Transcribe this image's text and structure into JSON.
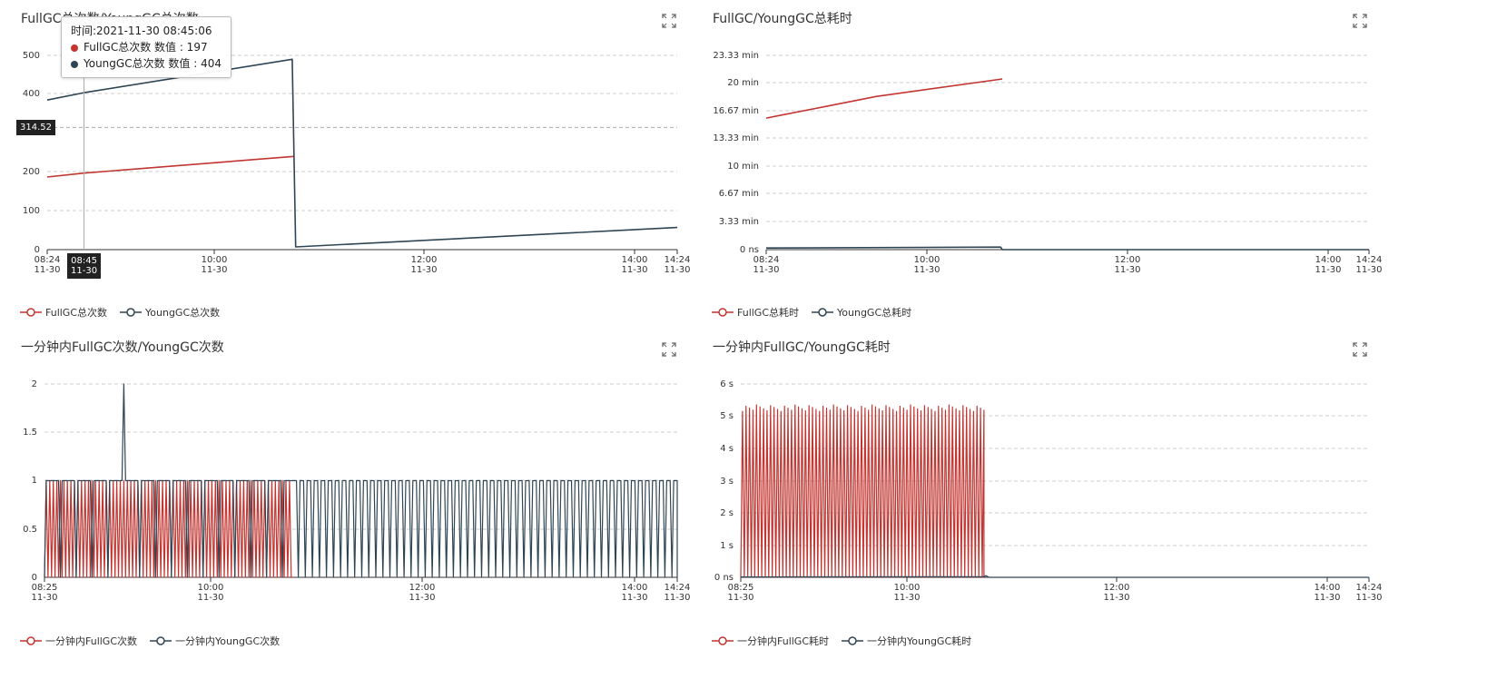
{
  "colors": {
    "full": "#c23531",
    "young": "#2f4554",
    "axis": "#333333",
    "grid": "#cccccc"
  },
  "icons": {
    "expand": "fullscreen-expand-icon"
  },
  "chart_data": [
    {
      "type": "line",
      "title": "FullGC总次数/YoungGC总次数",
      "x_ticks": [
        "08:24\n11-30",
        "10:00\n11-30",
        "12:00\n11-30",
        "14:00\n11-30",
        "14:24\n11-30"
      ],
      "x_range_minutes": [
        "08:24",
        "14:24"
      ],
      "y_ticks": [
        "0",
        "100",
        "200",
        "400",
        "500"
      ],
      "ylim": [
        0,
        500
      ],
      "series": [
        {
          "name": "FullGC总次数",
          "points": [
            [
              "08:24",
              187
            ],
            [
              "08:45",
              197
            ],
            [
              "10:45",
              240
            ]
          ]
        },
        {
          "name": "YoungGC总次数",
          "points": [
            [
              "08:24",
              385
            ],
            [
              "08:45",
              404
            ],
            [
              "10:44",
              490
            ],
            [
              "10:46",
              7
            ],
            [
              "14:24",
              57
            ]
          ]
        }
      ],
      "legend": [
        "FullGC总次数",
        "YoungGC总次数"
      ],
      "legend_position": "bottom-left",
      "grid": true,
      "tooltip": {
        "time": "时间:2021-11-30 08:45:06",
        "rows": [
          "FullGC总次数 数值 : 197",
          "YoungGC总次数 数值 : 404"
        ]
      },
      "pointer": {
        "x_label": [
          "08:45",
          "11-30"
        ],
        "y_label": "314.52"
      }
    },
    {
      "type": "line",
      "title": "FullGC/YoungGC总耗时",
      "x_ticks": [
        "08:24\n11-30",
        "10:00\n11-30",
        "12:00\n11-30",
        "14:00\n11-30",
        "14:24\n11-30"
      ],
      "x_range_minutes": [
        "08:24",
        "14:24"
      ],
      "y_ticks": [
        "0 ns",
        "3.33 min",
        "6.67 min",
        "10 min",
        "13.33 min",
        "16.67 min",
        "20 min",
        "23.33 min"
      ],
      "ylim": [
        0,
        23.33
      ],
      "series": [
        {
          "name": "FullGC总耗时",
          "points": [
            [
              "08:24",
              15.8
            ],
            [
              "09:30",
              18.4
            ],
            [
              "10:45",
              20.5
            ]
          ]
        },
        {
          "name": "YoungGC总耗时",
          "points": [
            [
              "08:24",
              0.2
            ],
            [
              "10:44",
              0.3
            ],
            [
              "10:45",
              0.0
            ],
            [
              "14:24",
              0.0
            ]
          ]
        }
      ],
      "legend": [
        "FullGC总耗时",
        "YoungGC总耗时"
      ],
      "legend_position": "bottom-left",
      "grid": true
    },
    {
      "type": "line",
      "title": "一分钟内FullGC次数/YoungGC次数",
      "x_ticks": [
        "08:25\n11-30",
        "10:00\n11-30",
        "12:00\n11-30",
        "14:00\n11-30",
        "14:24\n11-30"
      ],
      "x_range_minutes": [
        "08:25",
        "14:24"
      ],
      "y_ticks": [
        "0",
        "0.5",
        "1",
        "1.5",
        "2"
      ],
      "ylim": [
        0,
        2
      ],
      "series": [
        {
          "name": "一分钟内FullGC次数",
          "pattern": "alternating 0/1 every minute",
          "x_range": [
            "08:25",
            "10:45"
          ],
          "values": [
            0,
            1
          ]
        },
        {
          "name": "一分钟内YoungGC次数",
          "pattern": "mostly 1 with short 0 dips",
          "x_range": [
            "08:25",
            "14:24"
          ],
          "values": [
            0,
            1
          ],
          "spike": [
            "09:10",
            2
          ]
        }
      ],
      "legend": [
        "一分钟内FullGC次数",
        "一分钟内YoungGC次数"
      ],
      "legend_position": "bottom-left",
      "grid": true
    },
    {
      "type": "line",
      "title": "一分钟内FullGC/YoungGC耗时",
      "x_ticks": [
        "08:25\n11-30",
        "10:00\n11-30",
        "12:00\n11-30",
        "14:00\n11-30",
        "14:24\n11-30"
      ],
      "x_range_minutes": [
        "08:25",
        "14:24"
      ],
      "y_ticks": [
        "0 ns",
        "1 s",
        "2 s",
        "3 s",
        "4 s",
        "5 s",
        "6 s"
      ],
      "ylim": [
        0,
        6
      ],
      "series": [
        {
          "name": "一分钟内FullGC耗时",
          "pattern": "alternating 0 / ~5.25 s",
          "x_range": [
            "08:25",
            "10:44"
          ],
          "peak": 5.25
        },
        {
          "name": "一分钟内YoungGC耗时",
          "pattern": "near 0",
          "x_range": [
            "08:25",
            "14:24"
          ],
          "peak": 0.05
        }
      ],
      "legend": [
        "一分钟内FullGC耗时",
        "一分钟内YoungGC耗时"
      ],
      "legend_position": "bottom-left",
      "grid": true
    }
  ]
}
